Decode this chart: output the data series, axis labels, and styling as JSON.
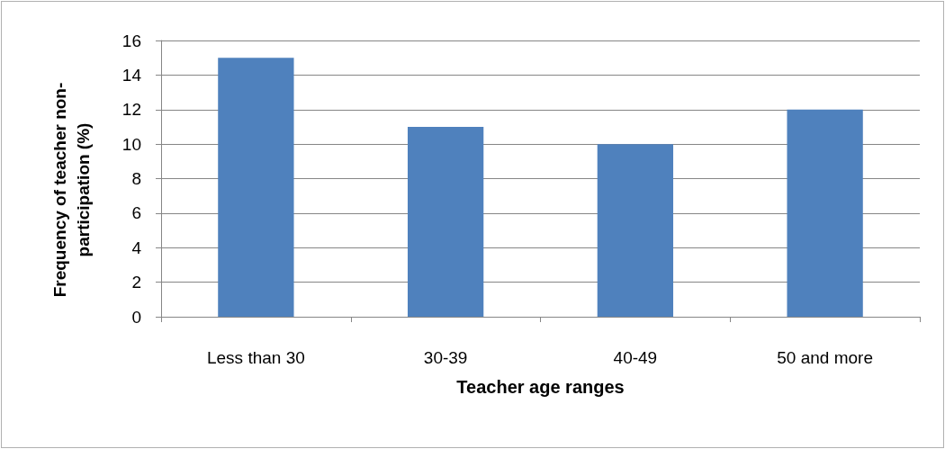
{
  "chart_data": {
    "type": "bar",
    "xlabel": "Teacher age ranges",
    "ylabel": "Frequency of teacher non-participation (%)",
    "categories": [
      "Less than 30",
      "30-39",
      "40-49",
      "50 and more"
    ],
    "values": [
      15,
      11,
      10,
      12
    ],
    "color": "#4f81bd",
    "ylim": [
      0,
      16
    ],
    "yticks": [
      0,
      2,
      4,
      6,
      8,
      10,
      12,
      14,
      16
    ],
    "grid": "y"
  }
}
